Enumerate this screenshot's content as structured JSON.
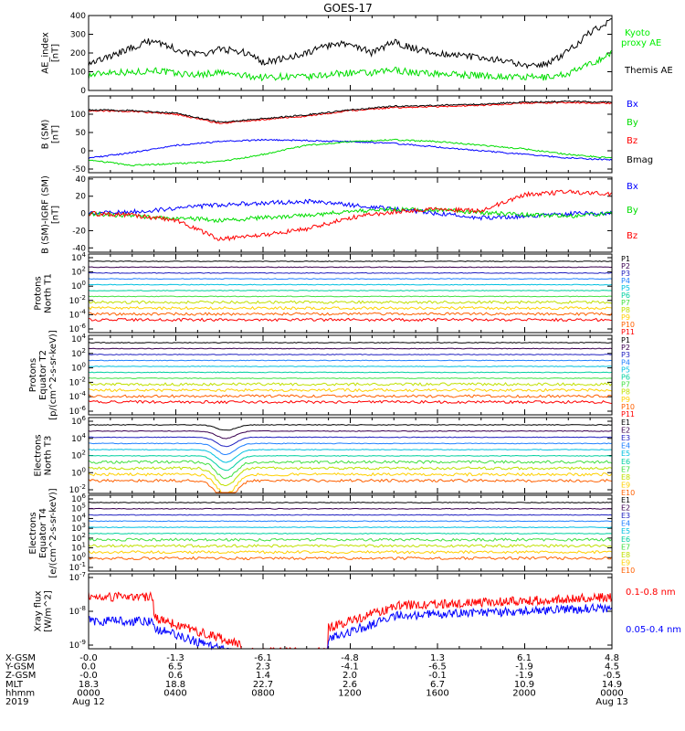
{
  "title": "GOES-17",
  "colors": {
    "black": "#000000",
    "red": "#ff0000",
    "green": "#00dd00",
    "blue": "#0000ff",
    "kyoto": "#00ee00",
    "proton_ch": [
      "#000000",
      "#3a0050",
      "#2020c0",
      "#2080ff",
      "#00c0e0",
      "#00d0a0",
      "#40e040",
      "#c0e000",
      "#ffd000",
      "#ff6000",
      "#ff0000"
    ],
    "electron_ch": [
      "#000000",
      "#3a0050",
      "#2020c0",
      "#2080ff",
      "#00c0e0",
      "#00d0a0",
      "#40e040",
      "#c0e000",
      "#ffd000",
      "#ff6000",
      "#ff0000"
    ]
  },
  "time_axis": {
    "rows": [
      {
        "label": "X-GSM",
        "values": [
          "-0.0",
          "-1.3",
          "-6.1",
          "-4.8",
          "1.3",
          "6.1",
          "4.8"
        ]
      },
      {
        "label": "Y-GSM",
        "values": [
          "0.0",
          "6.5",
          "2.3",
          "-4.1",
          "-6.5",
          "-1.9",
          "4.5"
        ]
      },
      {
        "label": "Z-GSM",
        "values": [
          "-0.0",
          "0.6",
          "1.4",
          "2.0",
          "-0.1",
          "-1.9",
          "-0.5"
        ]
      },
      {
        "label": "MLT",
        "values": [
          "18.3",
          "18.8",
          "22.7",
          "2.6",
          "6.7",
          "10.9",
          "14.9"
        ]
      },
      {
        "label": "hhmm",
        "values": [
          "0000",
          "0400",
          "0800",
          "1200",
          "1600",
          "2000",
          "0000"
        ]
      },
      {
        "label": "2019",
        "values": [
          "Aug 12",
          "",
          "",
          "",
          "",
          "",
          "Aug 13"
        ]
      }
    ]
  },
  "chart_data": [
    {
      "type": "line",
      "ylabel": "AE_index [nT]",
      "ylim": [
        0,
        400
      ],
      "yticks": [
        "0",
        "100",
        "200",
        "300",
        "400"
      ],
      "x": [
        0,
        1,
        2,
        3,
        4,
        5,
        6,
        7,
        8,
        9,
        10,
        11,
        12,
        13,
        14,
        15,
        16,
        17,
        18,
        19,
        20,
        21,
        22,
        23,
        24
      ],
      "series": [
        {
          "name": "Kyoto proxy AE",
          "color": "green",
          "values": [
            80,
            100,
            95,
            110,
            90,
            85,
            95,
            80,
            70,
            75,
            70,
            85,
            95,
            90,
            110,
            95,
            90,
            85,
            80,
            75,
            70,
            70,
            90,
            140,
            200
          ]
        },
        {
          "name": "Themis AE",
          "color": "black",
          "values": [
            150,
            180,
            230,
            270,
            220,
            190,
            220,
            210,
            150,
            170,
            200,
            240,
            250,
            200,
            260,
            220,
            200,
            190,
            170,
            160,
            130,
            140,
            210,
            310,
            380
          ]
        }
      ]
    },
    {
      "type": "line",
      "ylabel": "B (SM) [nT]",
      "ylim": [
        -60,
        150
      ],
      "yticks": [
        "-50",
        "0",
        "50",
        "100"
      ],
      "x": [
        0,
        2,
        4,
        6,
        8,
        10,
        12,
        14,
        16,
        18,
        20,
        22,
        24
      ],
      "series": [
        {
          "name": "Bx",
          "color": "blue",
          "values": [
            -20,
            -5,
            15,
            25,
            30,
            28,
            25,
            20,
            10,
            0,
            -10,
            -20,
            -25
          ]
        },
        {
          "name": "By",
          "color": "green",
          "values": [
            -25,
            -40,
            -35,
            -30,
            -10,
            15,
            25,
            30,
            25,
            15,
            5,
            -10,
            -20
          ]
        },
        {
          "name": "Bz",
          "color": "red",
          "values": [
            110,
            108,
            100,
            75,
            85,
            95,
            110,
            118,
            120,
            125,
            130,
            132,
            130
          ]
        },
        {
          "name": "Bmag",
          "color": "black",
          "values": [
            112,
            110,
            103,
            78,
            88,
            98,
            112,
            122,
            124,
            128,
            133,
            135,
            133
          ]
        }
      ]
    },
    {
      "type": "line",
      "ylabel": "B (SM)-IGRF (SM) [nT]",
      "ylim": [
        -45,
        42
      ],
      "yticks": [
        "-40",
        "-20",
        "0",
        "20",
        "40"
      ],
      "x": [
        0,
        2,
        4,
        6,
        8,
        10,
        12,
        14,
        16,
        18,
        20,
        22,
        24
      ],
      "series": [
        {
          "name": "Bx",
          "color": "blue",
          "values": [
            0,
            2,
            6,
            10,
            12,
            14,
            10,
            5,
            0,
            -5,
            -3,
            0,
            0
          ]
        },
        {
          "name": "By",
          "color": "green",
          "values": [
            0,
            -3,
            -5,
            -8,
            -5,
            -2,
            2,
            5,
            4,
            1,
            -1,
            -3,
            0
          ]
        },
        {
          "name": "Bz",
          "color": "red",
          "values": [
            0,
            -2,
            -8,
            -30,
            -25,
            -18,
            -5,
            2,
            5,
            3,
            22,
            25,
            22
          ]
        }
      ]
    },
    {
      "type": "line",
      "ylabel": "Protons North T1",
      "ylog": true,
      "yticks": [
        "10^4",
        "10^2",
        "10^0",
        "10^-2",
        "10^-4",
        "10^-6"
      ],
      "channels": [
        "P1",
        "P2",
        "P3",
        "P4",
        "P5",
        "P6",
        "P7",
        "P8",
        "P9",
        "P10",
        "P11"
      ]
    },
    {
      "type": "line",
      "ylabel": "Protons Equator T2 [p/(cm^2-s-sr-keV)]",
      "ylog": true,
      "yticks": [
        "10^4",
        "10^2",
        "10^0",
        "10^-2",
        "10^-4",
        "10^-6"
      ],
      "channels": [
        "P1",
        "P2",
        "P3",
        "P4",
        "P5",
        "P6",
        "P7",
        "P8",
        "P9",
        "P10",
        "P11"
      ]
    },
    {
      "type": "line",
      "ylabel": "Electrons North T3",
      "ylog": true,
      "yticks": [
        "10^6",
        "10^4",
        "10^2",
        "10^0",
        "10^-2"
      ],
      "channels": [
        "E1",
        "E2",
        "E3",
        "E4",
        "E5",
        "E6",
        "E7",
        "E8",
        "E9",
        "E10"
      ]
    },
    {
      "type": "line",
      "ylabel": "Electrons Equator T4 [e/(cm^2-s-sr-keV)]",
      "ylog": true,
      "yticks": [
        "10^6",
        "10^5",
        "10^4",
        "10^3",
        "10^2",
        "10^1",
        "10^0",
        "10^-1"
      ],
      "channels": [
        "E1",
        "E2",
        "E3",
        "E4",
        "E5",
        "E6",
        "E7",
        "E8",
        "E9",
        "E10"
      ]
    },
    {
      "type": "line",
      "ylabel": "Xray flux [W/m^2]",
      "ylog": true,
      "yticks": [
        "10^-7",
        "10^-8",
        "10^-9"
      ],
      "series": [
        {
          "name": "0.1-0.8 nm",
          "color": "red"
        },
        {
          "name": "0.05-0.4 nm",
          "color": "blue"
        }
      ]
    }
  ]
}
